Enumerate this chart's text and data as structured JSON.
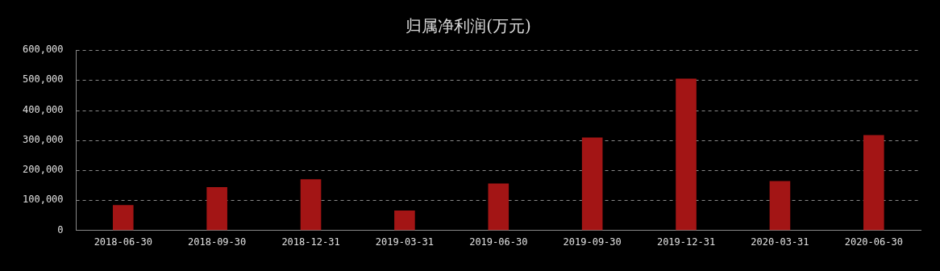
{
  "chart_data": {
    "type": "bar",
    "title": "归属净利润(万元)",
    "categories": [
      "2018-06-30",
      "2018-09-30",
      "2018-12-31",
      "2019-03-31",
      "2019-06-30",
      "2019-09-30",
      "2019-12-31",
      "2020-03-31",
      "2020-06-30"
    ],
    "values": [
      84000,
      144000,
      170000,
      66000,
      156000,
      309000,
      505000,
      164000,
      317000
    ],
    "color": "#a31515",
    "ylim": [
      0,
      600000
    ],
    "yticks": [
      0,
      {
        "value": 100000,
        "label": "100,000"
      },
      {
        "value": 200000,
        "label": "200,000"
      },
      {
        "value": 300000,
        "label": "300,000"
      },
      {
        "value": 400000,
        "label": "400,000"
      },
      {
        "value": 500000,
        "label": "500,000"
      },
      {
        "value": 600000,
        "label": "600,000"
      }
    ],
    "grid": "y"
  }
}
